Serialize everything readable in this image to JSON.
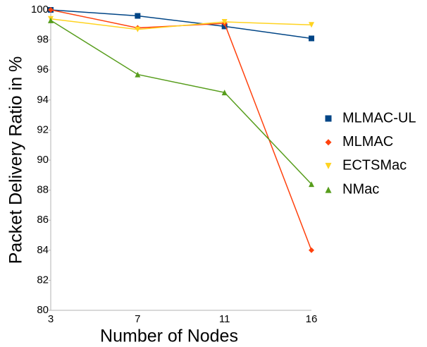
{
  "chart_data": {
    "type": "line",
    "xlabel": "Number of Nodes",
    "ylabel": "Packet Delivery Ratio in %",
    "categories": [
      "3",
      "7",
      "11",
      "16"
    ],
    "series": [
      {
        "name": "MLMAC-UL",
        "color": "#004586",
        "marker": "square",
        "values": [
          100,
          99.6,
          98.9,
          98.1
        ]
      },
      {
        "name": "MLMAC",
        "color": "#ff420e",
        "marker": "diamond",
        "values": [
          100,
          98.8,
          99.1,
          84.0
        ]
      },
      {
        "name": "ECTSMac",
        "color": "#ffd320",
        "marker": "triangle-down",
        "values": [
          99.4,
          98.7,
          99.2,
          99.0
        ]
      },
      {
        "name": "NMac",
        "color": "#579d1c",
        "marker": "triangle-up",
        "values": [
          99.3,
          95.7,
          94.5,
          88.4
        ]
      }
    ],
    "ylim": [
      80,
      100
    ],
    "yticks": [
      80,
      82,
      84,
      86,
      88,
      90,
      92,
      94,
      96,
      98,
      100
    ],
    "grid": false,
    "legend": "right"
  }
}
